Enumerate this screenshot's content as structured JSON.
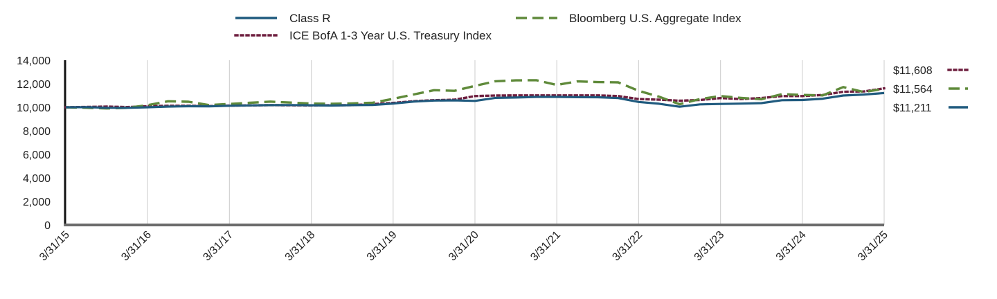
{
  "chart_data": {
    "type": "line",
    "title": "",
    "xlabel": "",
    "ylabel": "",
    "ylim": [
      0,
      14000
    ],
    "y_ticks": [
      "14,000",
      "12,000",
      "10,000",
      "8,000",
      "6,000",
      "4,000",
      "2,000",
      "0"
    ],
    "y_tick_values": [
      14000,
      12000,
      10000,
      8000,
      6000,
      4000,
      2000,
      0
    ],
    "x_ticks": [
      "3/31/15",
      "3/31/16",
      "3/31/17",
      "3/31/18",
      "3/31/19",
      "3/31/20",
      "3/31/21",
      "3/31/22",
      "3/31/23",
      "3/31/24",
      "3/31/25"
    ],
    "grid": "vertical",
    "legend_position": "top",
    "x": [
      "3/31/15",
      "6/30/15",
      "9/30/15",
      "12/31/15",
      "3/31/16",
      "6/30/16",
      "9/30/16",
      "12/31/16",
      "3/31/17",
      "6/30/17",
      "9/30/17",
      "12/31/17",
      "3/31/18",
      "6/30/18",
      "9/30/18",
      "12/31/18",
      "3/31/19",
      "6/30/19",
      "9/30/19",
      "12/31/19",
      "3/31/20",
      "6/30/20",
      "9/30/20",
      "12/31/20",
      "3/31/21",
      "6/30/21",
      "9/30/21",
      "12/31/21",
      "3/31/22",
      "6/30/22",
      "9/30/22",
      "12/31/22",
      "3/31/23",
      "6/30/23",
      "9/30/23",
      "12/31/23",
      "3/31/24",
      "6/30/24",
      "9/30/24",
      "12/31/24",
      "3/31/25"
    ],
    "series": [
      {
        "name": "Class R",
        "color": "#1f5a7e",
        "style": "solid",
        "end_label": "$11,211",
        "values": [
          10000,
          10010,
          9960,
          9950,
          10000,
          10060,
          10090,
          10080,
          10130,
          10160,
          10180,
          10190,
          10170,
          10150,
          10180,
          10200,
          10320,
          10480,
          10570,
          10590,
          10540,
          10800,
          10830,
          10880,
          10880,
          10860,
          10850,
          10780,
          10450,
          10300,
          10050,
          10250,
          10280,
          10310,
          10350,
          10600,
          10620,
          10730,
          11000,
          11080,
          11211
        ]
      },
      {
        "name": "ICE BofA 1-3 Year U.S. Treasury Index",
        "color": "#6e1f3f",
        "style": "dotted",
        "end_label": "$11,608",
        "values": [
          10000,
          10030,
          10060,
          10020,
          10090,
          10130,
          10130,
          10100,
          10140,
          10160,
          10180,
          10170,
          10160,
          10170,
          10180,
          10270,
          10370,
          10520,
          10600,
          10650,
          10950,
          11000,
          11010,
          11010,
          11010,
          11010,
          11010,
          10950,
          10700,
          10650,
          10560,
          10620,
          10780,
          10700,
          10790,
          10950,
          10950,
          11050,
          11320,
          11350,
          11608
        ]
      },
      {
        "name": "Bloomberg U.S. Aggregate Index",
        "color": "#5f8a3a",
        "style": "dashed",
        "end_label": "$11,564",
        "values": [
          10000,
          9960,
          9900,
          9950,
          10180,
          10510,
          10470,
          10190,
          10280,
          10380,
          10480,
          10400,
          10310,
          10300,
          10330,
          10390,
          10720,
          11090,
          11450,
          11400,
          11820,
          12210,
          12290,
          12300,
          11900,
          12200,
          12140,
          12120,
          11400,
          10900,
          10260,
          10700,
          10950,
          10800,
          10680,
          11120,
          11050,
          11010,
          11720,
          11300,
          11564
        ]
      }
    ]
  }
}
